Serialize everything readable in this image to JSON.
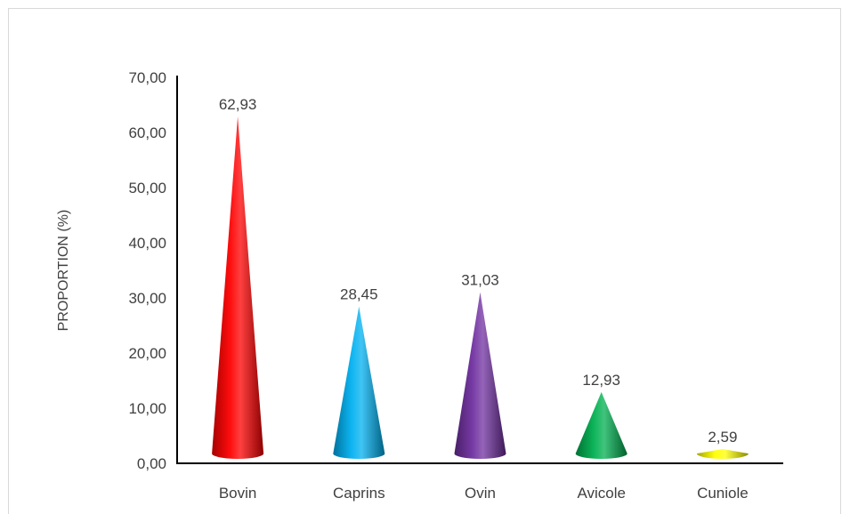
{
  "chart_data": {
    "type": "bar",
    "bar_shape": "cone",
    "title": "",
    "xlabel": "",
    "ylabel": "PROPORTION (%)",
    "categories": [
      "Bovin",
      "Caprins",
      "Ovin",
      "Avicole",
      "Cuniole"
    ],
    "values": [
      62.93,
      28.45,
      31.03,
      12.93,
      2.59
    ],
    "data_labels": [
      "62,93",
      "28,45",
      "31,03",
      "12,93",
      "2,59"
    ],
    "ylim": [
      0,
      70
    ],
    "yticks": [
      0,
      10,
      20,
      30,
      40,
      50,
      60,
      70
    ],
    "ytick_labels": [
      "0,00",
      "10,00",
      "20,00",
      "30,00",
      "40,00",
      "50,00",
      "60,00",
      "70,00"
    ],
    "grid": false,
    "legend": "none",
    "colors": [
      "#ff0000",
      "#00b0f0",
      "#7030a0",
      "#00b050",
      "#ffff00"
    ]
  }
}
